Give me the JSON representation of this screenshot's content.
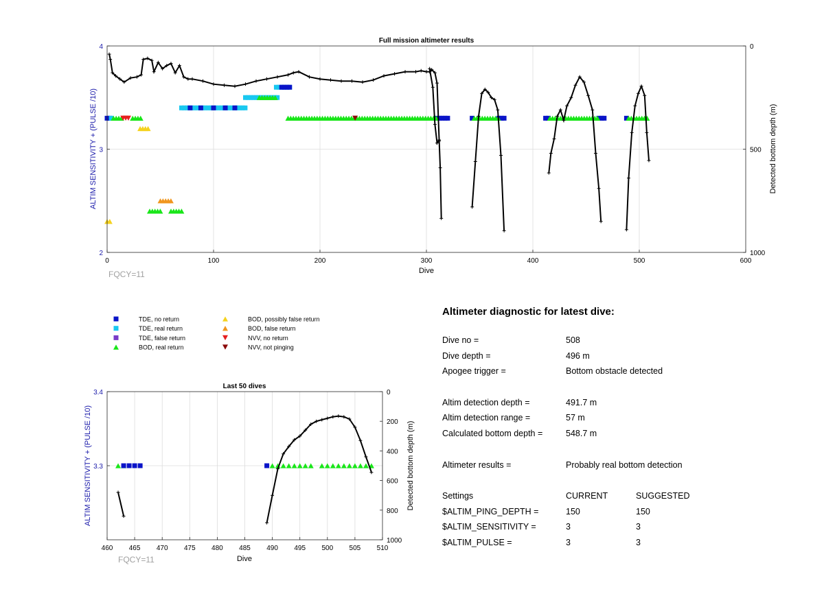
{
  "chart_data": [
    {
      "type": "scatter",
      "title": "Full mission altimeter results",
      "xlabel": "Dive",
      "ylabel": "ALTIM SENSITIVITY + (PULSE /10)",
      "ylabel_right": "Detected bottom depth (m)",
      "xlim": [
        0,
        600
      ],
      "ylim": [
        2,
        4
      ],
      "ylim_right": [
        0,
        1000
      ],
      "xticks": [
        "0",
        "100",
        "200",
        "300",
        "400",
        "500",
        "600"
      ],
      "yticks": [
        "2",
        "3",
        "4"
      ],
      "yticks_right": [
        "0",
        "500",
        "1000"
      ],
      "annotation": "FQCY=11",
      "grid": true,
      "markers": [
        {
          "series": "TDE, no return",
          "y": 3.3,
          "ranges": [
            [
              0,
              4
            ],
            [
              310,
              322
            ],
            [
              343,
              345
            ],
            [
              368,
              374
            ],
            [
              412,
              416
            ],
            [
              462,
              468
            ],
            [
              488,
              490
            ]
          ]
        },
        {
          "series": "TDE, real return",
          "y": 3.3,
          "ranges": [
            [
              4,
              6
            ]
          ]
        },
        {
          "series": "BOD, real return",
          "y": 3.3,
          "ranges": [
            [
              6,
              14
            ],
            [
              24,
              32
            ],
            [
              170,
              310
            ],
            [
              345,
              368
            ],
            [
              416,
              462
            ],
            [
              490,
              508
            ]
          ]
        },
        {
          "series": "NVV, no return",
          "y": 3.3,
          "ranges": [
            [
              15,
              20
            ]
          ]
        },
        {
          "series": "NVV, not pinging",
          "y": 3.3,
          "ranges": [
            [
              233,
              235
            ]
          ]
        },
        {
          "series": "BOD, possibly false return",
          "y": 3.2,
          "ranges": [
            [
              31,
              40
            ]
          ]
        },
        {
          "series": "TDE, real return",
          "y": 3.4,
          "ranges": [
            [
              70,
              132
            ]
          ]
        },
        {
          "series": "TDE, no return",
          "y": 3.4,
          "ranges": [
            [
              78,
              79
            ],
            [
              88,
              89
            ],
            [
              100,
              101
            ],
            [
              111,
              112
            ],
            [
              120,
              121
            ]
          ]
        },
        {
          "series": "TDE, real return",
          "y": 3.5,
          "ranges": [
            [
              130,
              160
            ]
          ]
        },
        {
          "series": "BOD, real return",
          "y": 3.5,
          "ranges": [
            [
              143,
              160
            ]
          ]
        },
        {
          "series": "TDE, real return",
          "y": 3.6,
          "ranges": [
            [
              159,
              172
            ]
          ]
        },
        {
          "series": "TDE, no return",
          "y": 3.6,
          "ranges": [
            [
              164,
              172
            ]
          ]
        },
        {
          "series": "BOD, false return",
          "y": 2.5,
          "ranges": [
            [
              50,
              62
            ]
          ]
        },
        {
          "series": "BOD, real return",
          "y": 2.4,
          "ranges": [
            [
              40,
              52
            ],
            [
              60,
              72
            ]
          ]
        },
        {
          "series": "BOD, possibly false return",
          "y": 2.3,
          "ranges": [
            [
              0,
              4
            ]
          ]
        }
      ],
      "depth_series": [
        [
          [
            2,
            40
          ],
          [
            3,
            65
          ],
          [
            5,
            130
          ],
          [
            8,
            145
          ],
          [
            12,
            160
          ],
          [
            16,
            175
          ],
          [
            22,
            155
          ],
          [
            28,
            150
          ],
          [
            32,
            140
          ],
          [
            34,
            65
          ],
          [
            38,
            60
          ],
          [
            42,
            70
          ],
          [
            44,
            125
          ],
          [
            48,
            80
          ],
          [
            52,
            110
          ],
          [
            56,
            95
          ],
          [
            60,
            85
          ],
          [
            64,
            130
          ],
          [
            68,
            95
          ],
          [
            72,
            150
          ],
          [
            76,
            160
          ],
          [
            80,
            160
          ],
          [
            90,
            170
          ],
          [
            100,
            185
          ],
          [
            110,
            190
          ],
          [
            120,
            195
          ],
          [
            130,
            185
          ],
          [
            140,
            170
          ],
          [
            150,
            160
          ],
          [
            160,
            150
          ],
          [
            170,
            140
          ],
          [
            175,
            130
          ],
          [
            180,
            125
          ],
          [
            190,
            150
          ],
          [
            200,
            160
          ],
          [
            210,
            165
          ],
          [
            220,
            170
          ],
          [
            230,
            170
          ],
          [
            240,
            175
          ],
          [
            250,
            165
          ],
          [
            260,
            145
          ],
          [
            270,
            135
          ],
          [
            280,
            125
          ],
          [
            290,
            125
          ],
          [
            295,
            120
          ],
          [
            300,
            125
          ],
          [
            303,
            125
          ],
          [
            305,
            115
          ],
          [
            308,
            130
          ],
          [
            310,
            180
          ],
          [
            312,
            460
          ],
          [
            313,
            590
          ],
          [
            314,
            835
          ]
        ],
        [
          [
            303,
            110
          ],
          [
            306,
            200
          ],
          [
            308,
            380
          ],
          [
            310,
            470
          ],
          [
            312,
            455
          ]
        ],
        [
          [
            343,
            780
          ],
          [
            346,
            560
          ],
          [
            349,
            340
          ],
          [
            352,
            230
          ],
          [
            355,
            210
          ],
          [
            358,
            225
          ],
          [
            361,
            250
          ],
          [
            364,
            260
          ],
          [
            367,
            310
          ],
          [
            370,
            530
          ],
          [
            373,
            895
          ]
        ],
        [
          [
            415,
            615
          ],
          [
            417,
            520
          ],
          [
            420,
            450
          ],
          [
            423,
            340
          ],
          [
            426,
            310
          ],
          [
            429,
            360
          ],
          [
            432,
            290
          ],
          [
            436,
            250
          ],
          [
            440,
            190
          ],
          [
            444,
            150
          ],
          [
            448,
            175
          ],
          [
            452,
            240
          ],
          [
            456,
            310
          ],
          [
            459,
            520
          ],
          [
            462,
            690
          ],
          [
            464,
            850
          ]
        ],
        [
          [
            488,
            890
          ],
          [
            490,
            640
          ],
          [
            493,
            420
          ],
          [
            496,
            290
          ],
          [
            499,
            230
          ],
          [
            502,
            195
          ],
          [
            505,
            240
          ],
          [
            507,
            420
          ],
          [
            509,
            555
          ]
        ]
      ]
    },
    {
      "type": "scatter",
      "title": "Last 50 dives",
      "xlabel": "Dive",
      "ylabel": "ALTIM SENSITIVITY + (PULSE /10)",
      "ylabel_right": "Detected bottom depth (m)",
      "xlim": [
        460,
        510
      ],
      "ylim": [
        3.2,
        3.4
      ],
      "ylim_right": [
        0,
        1000
      ],
      "xticks": [
        "460",
        "465",
        "470",
        "475",
        "480",
        "485",
        "490",
        "495",
        "500",
        "505",
        "510"
      ],
      "yticks": [
        "3.3",
        "3.4"
      ],
      "yticks_right": [
        "0",
        "200",
        "400",
        "600",
        "800",
        "1000"
      ],
      "annotation": "FQCY=11",
      "grid": true,
      "markers": [
        {
          "series": "BOD, real return",
          "y": 3.3,
          "dives": [
            462,
            463,
            490,
            491,
            492,
            493,
            494,
            495,
            496,
            497,
            499,
            500,
            501,
            502,
            503,
            504,
            505,
            506,
            507,
            508
          ]
        },
        {
          "series": "TDE, no return",
          "y": 3.3,
          "dives": [
            463,
            464,
            465,
            466,
            489
          ]
        }
      ],
      "depth_series": [
        [
          [
            462,
            680
          ],
          [
            463,
            840
          ]
        ],
        [
          [
            489,
            885
          ],
          [
            490,
            700
          ],
          [
            491,
            520
          ],
          [
            492,
            420
          ],
          [
            493,
            370
          ],
          [
            494,
            325
          ],
          [
            495,
            300
          ],
          [
            496,
            260
          ],
          [
            497,
            220
          ],
          [
            498,
            200
          ],
          [
            499,
            190
          ],
          [
            500,
            180
          ],
          [
            501,
            170
          ],
          [
            502,
            165
          ],
          [
            503,
            170
          ],
          [
            504,
            185
          ],
          [
            505,
            240
          ],
          [
            506,
            330
          ],
          [
            507,
            440
          ],
          [
            508,
            545
          ]
        ]
      ]
    }
  ],
  "legend": {
    "items": [
      {
        "label": "TDE, no return",
        "color": "#0a14c8",
        "shape": "square"
      },
      {
        "label": "TDE, real return",
        "color": "#19c8f0",
        "shape": "square"
      },
      {
        "label": "TDE, false return",
        "color": "#7a3cc8",
        "shape": "square"
      },
      {
        "label": "BOD, real return",
        "color": "#19e619",
        "shape": "triangle-up"
      },
      {
        "label": "BOD, possibly false return",
        "color": "#f5d21e",
        "shape": "triangle-up"
      },
      {
        "label": "BOD, false return",
        "color": "#f0961e",
        "shape": "triangle-up"
      },
      {
        "label": "NVV, no return",
        "color": "#e61e1e",
        "shape": "triangle-down"
      },
      {
        "label": "NVV, not pinging",
        "color": "#8c0a0a",
        "shape": "triangle-down"
      }
    ]
  },
  "diagnostic": {
    "title": "Altimeter diagnostic for latest dive:",
    "dive_no_label": "Dive no =",
    "dive_no_value": "508",
    "dive_depth_label": "Dive depth =",
    "dive_depth_value": "496 m",
    "apogee_label": "Apogee trigger =",
    "apogee_value": "Bottom obstacle detected",
    "altim_depth_label": "Altim detection depth =",
    "altim_depth_value": "491.7 m",
    "altim_range_label": "Altim detection range =",
    "altim_range_value": "57 m",
    "calc_depth_label": "Calculated bottom depth =",
    "calc_depth_value": "548.7 m",
    "results_label": "Altimeter results =",
    "results_value": "Probably real bottom detection",
    "settings_label": "Settings",
    "current_label": "CURRENT",
    "suggested_label": "SUGGESTED",
    "settings": [
      {
        "name": "$ALTIM_PING_DEPTH =",
        "current": "150",
        "suggested": "150"
      },
      {
        "name": "$ALTIM_SENSITIVITY =",
        "current": "3",
        "suggested": "3"
      },
      {
        "name": "$ALTIM_PULSE =",
        "current": "3",
        "suggested": "3"
      }
    ]
  }
}
